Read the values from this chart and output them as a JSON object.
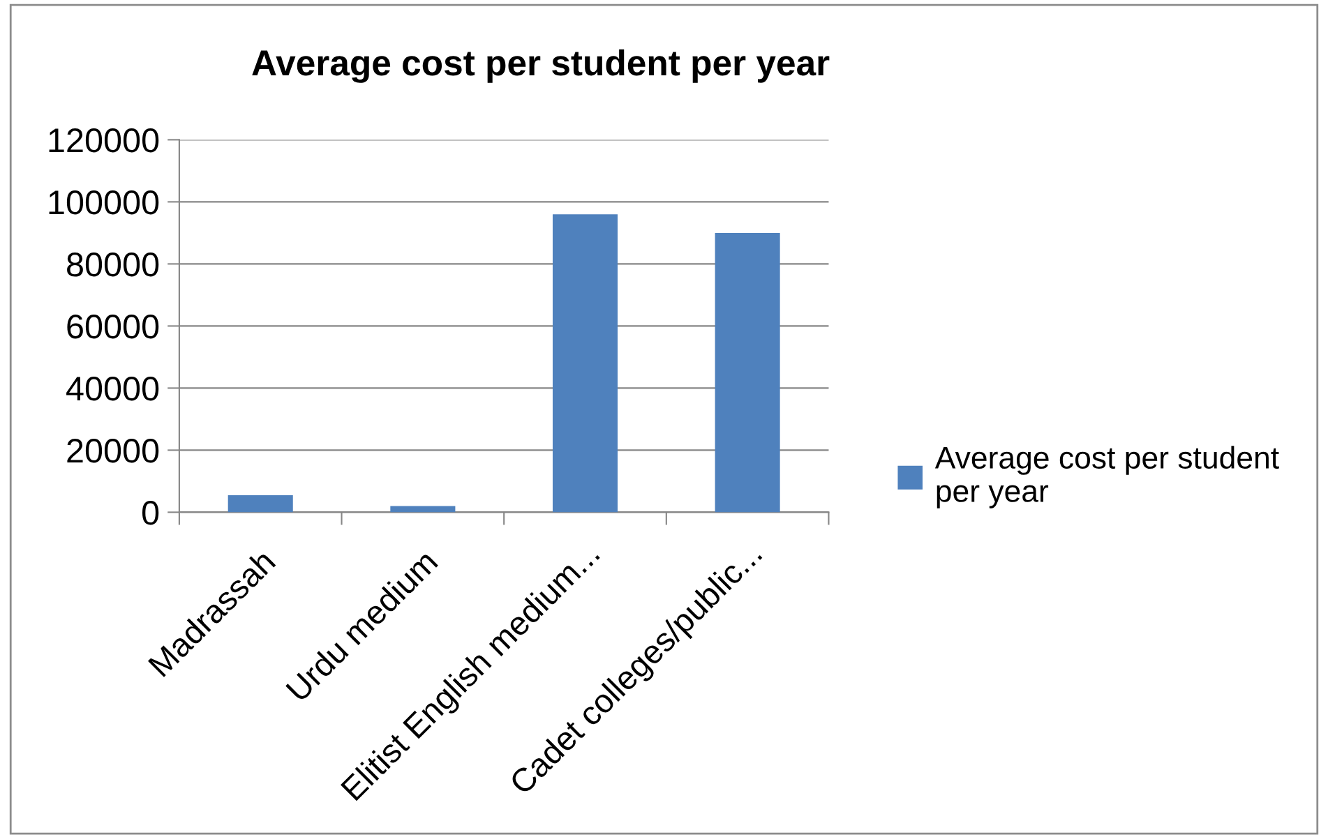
{
  "chart_data": {
    "type": "bar",
    "title": "Average cost per student per year",
    "categories": [
      "Madrassah",
      "Urdu medium",
      "Elitist English medium...",
      "Cadet colleges/public..."
    ],
    "series": [
      {
        "name": "Average cost per student per year",
        "color": "#4f81bd",
        "values": [
          5500,
          2000,
          96000,
          90000
        ]
      }
    ],
    "ylim": [
      0,
      120000
    ],
    "yticks": [
      0,
      20000,
      40000,
      60000,
      80000,
      100000,
      120000
    ],
    "grid": "y",
    "legend": "right"
  }
}
